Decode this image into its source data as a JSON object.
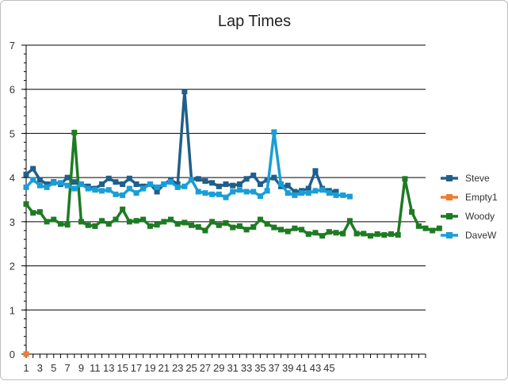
{
  "chart_data": {
    "type": "line",
    "title": "Lap Times",
    "xlabel": "",
    "ylabel": "",
    "ylim": [
      0,
      7
    ],
    "yticks": [
      0,
      1,
      2,
      3,
      4,
      5,
      6,
      7
    ],
    "xlim": [
      1,
      59
    ],
    "xtick_labels": [
      1,
      3,
      5,
      7,
      9,
      11,
      13,
      15,
      17,
      19,
      21,
      23,
      25,
      27,
      29,
      31,
      33,
      35,
      37,
      39,
      41,
      43,
      45
    ],
    "grid": "horizontal",
    "legend": "right",
    "series": [
      {
        "name": "Steve",
        "color": "#1f5f8b",
        "values": [
          4.07,
          4.2,
          3.95,
          3.85,
          3.9,
          3.85,
          4.0,
          3.9,
          3.85,
          3.8,
          3.75,
          3.85,
          3.98,
          3.9,
          3.85,
          3.98,
          3.85,
          3.8,
          3.85,
          3.68,
          3.85,
          3.95,
          3.85,
          5.95,
          3.95,
          3.97,
          3.92,
          3.88,
          3.8,
          3.85,
          3.82,
          3.85,
          3.97,
          4.05,
          3.85,
          3.95,
          4.0,
          3.8,
          3.82,
          3.68,
          3.7,
          3.75,
          4.15,
          3.75,
          3.7,
          3.68
        ]
      },
      {
        "name": "Empty1",
        "color": "#ed7d31",
        "values": [
          0
        ]
      },
      {
        "name": "Woody",
        "color": "#1e7b23",
        "values": [
          3.4,
          3.2,
          3.22,
          3.0,
          3.05,
          2.95,
          2.93,
          5.02,
          3.0,
          2.92,
          2.9,
          3.02,
          2.95,
          3.05,
          3.28,
          3.0,
          3.02,
          3.05,
          2.9,
          2.93,
          3.0,
          3.05,
          2.95,
          2.98,
          2.92,
          2.88,
          2.8,
          3.0,
          2.92,
          2.97,
          2.87,
          2.9,
          2.82,
          2.88,
          3.05,
          2.95,
          2.87,
          2.82,
          2.78,
          2.85,
          2.82,
          2.72,
          2.75,
          2.68,
          2.77,
          2.75,
          2.73,
          3.02,
          2.73,
          2.73,
          2.68,
          2.72,
          2.7,
          2.72,
          2.7,
          3.97,
          3.22,
          2.9,
          2.85,
          2.8,
          2.85
        ]
      },
      {
        "name": "DaveW",
        "color": "#1a9ed6",
        "values": [
          3.78,
          3.95,
          3.82,
          3.78,
          3.88,
          3.88,
          3.82,
          3.75,
          3.85,
          3.75,
          3.72,
          3.7,
          3.72,
          3.62,
          3.6,
          3.75,
          3.65,
          3.75,
          3.85,
          3.78,
          3.85,
          3.9,
          3.78,
          3.8,
          3.95,
          3.68,
          3.65,
          3.62,
          3.62,
          3.55,
          3.68,
          3.72,
          3.68,
          3.68,
          3.58,
          3.7,
          5.03,
          3.85,
          3.65,
          3.6,
          3.65,
          3.65,
          3.7,
          3.72,
          3.65,
          3.6,
          3.6,
          3.57
        ]
      }
    ]
  }
}
